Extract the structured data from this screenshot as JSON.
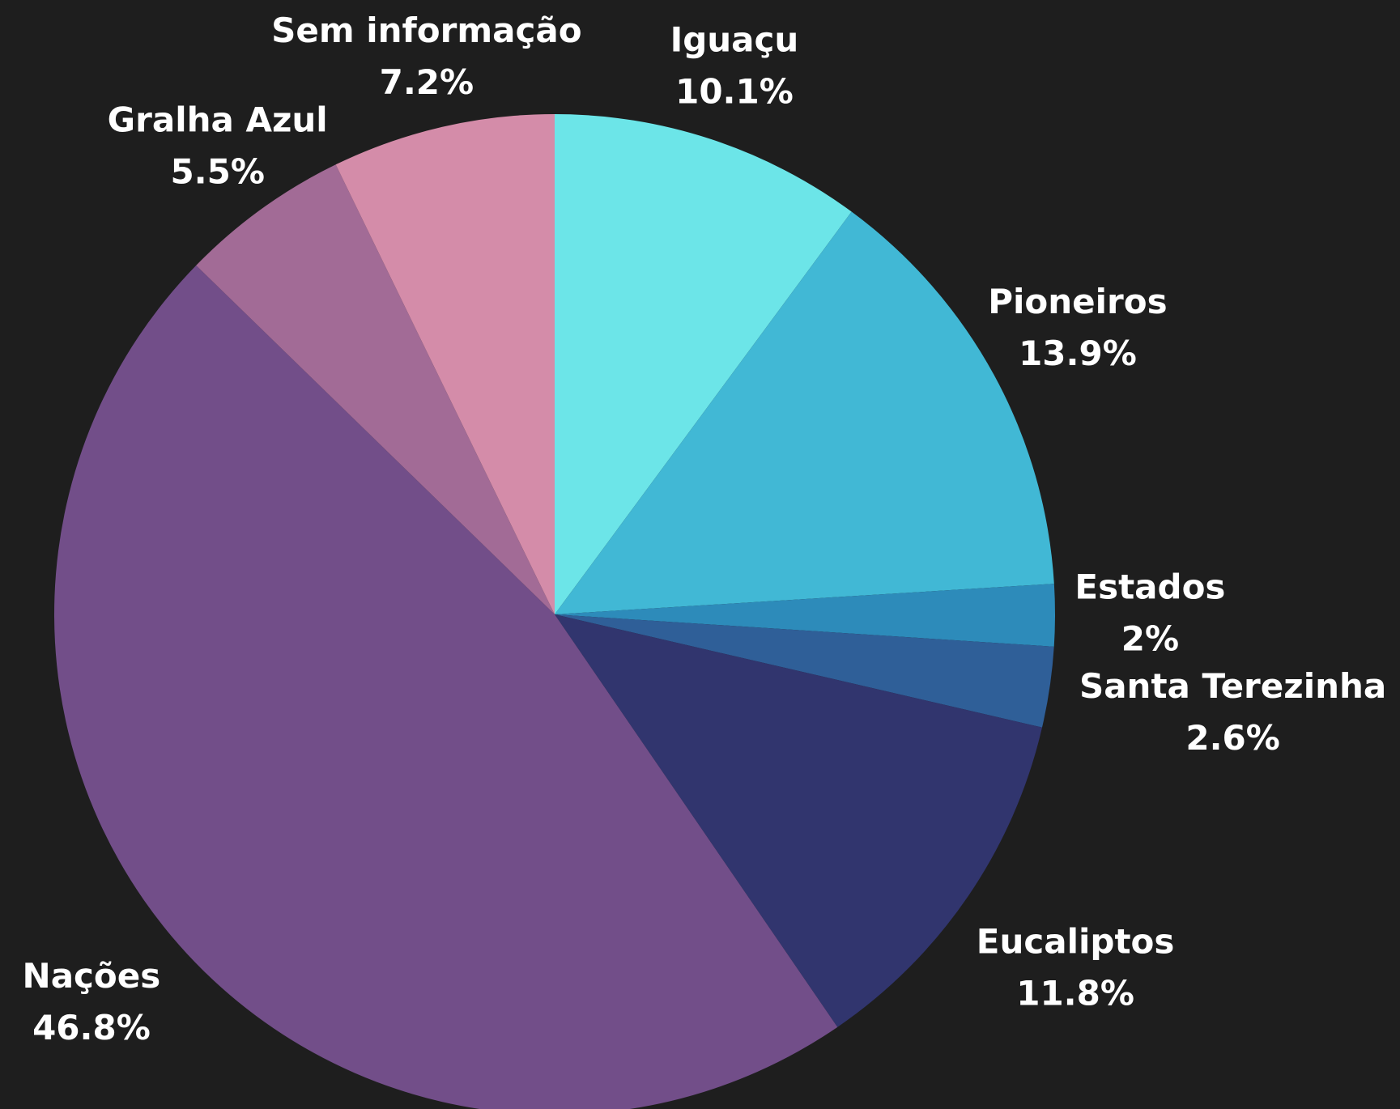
{
  "chart_data": {
    "type": "pie",
    "categories": [
      "Iguaçu",
      "Pioneiros",
      "Estados",
      "Santa Terezinha",
      "Eucaliptos",
      "Nações",
      "Gralha Azul",
      "Sem informação"
    ],
    "values": [
      10.1,
      13.9,
      2,
      2.6,
      11.8,
      46.8,
      5.5,
      7.2
    ],
    "value_labels": [
      "10.1%",
      "13.9%",
      "2%",
      "2.6%",
      "11.8%",
      "46.8%",
      "5.5%",
      "7.2%"
    ],
    "colors": [
      "#6ce5e8",
      "#41b8d5",
      "#2d8bba",
      "#2f5f98",
      "#31356e",
      "#724e89",
      "#a26b96",
      "#d48ca9"
    ]
  }
}
